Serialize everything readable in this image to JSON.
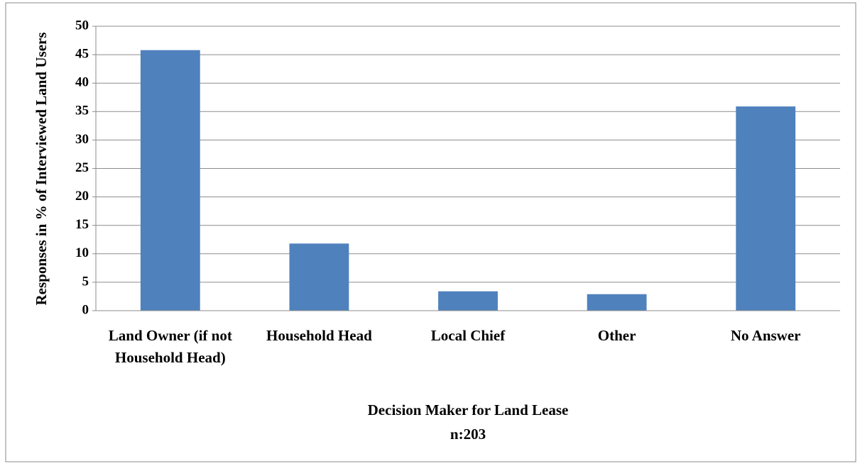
{
  "chart_data": {
    "type": "bar",
    "ylabel": "Responses in % of Interviewed Land Users",
    "xlabel": "Decision Maker for Land Lease",
    "note": "n:203",
    "categories": [
      "Land Owner (if not Household Head)",
      "Household Head",
      "Local Chief",
      "Other",
      "No Answer"
    ],
    "values": [
      45.8,
      11.8,
      3.4,
      2.9,
      35.9
    ],
    "color": "#4f81bd",
    "ylim": [
      0,
      50
    ],
    "yticks": [
      0,
      5,
      10,
      15,
      20,
      25,
      30,
      35,
      40,
      45,
      50
    ],
    "grid": true
  }
}
